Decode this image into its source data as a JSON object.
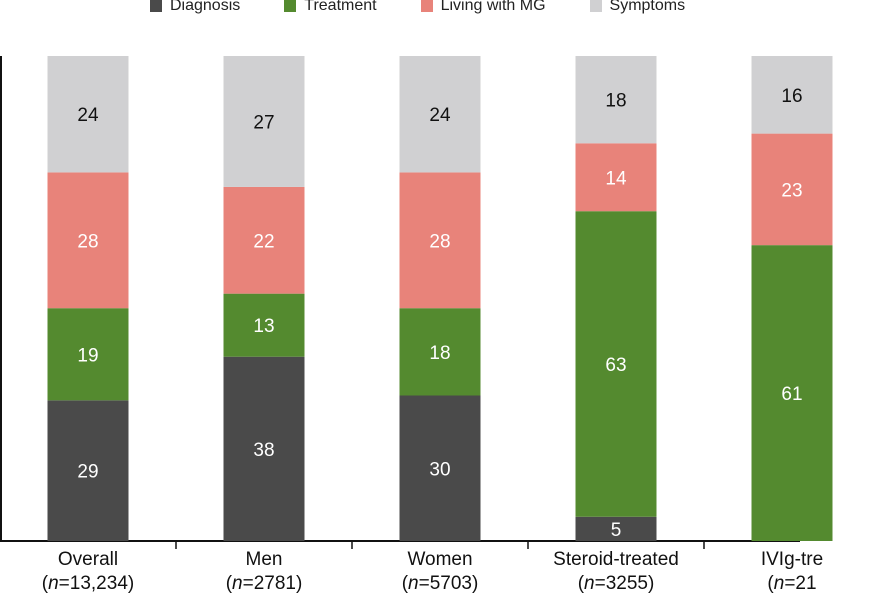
{
  "chart_data": {
    "type": "bar",
    "stacked": true,
    "categories": [
      "Overall",
      "Men",
      "Women",
      "Steroid-treated",
      "IVIg-tre"
    ],
    "category_counts": [
      "13,234",
      "2781",
      "5703",
      "3255",
      "21"
    ],
    "n_prefix": "n",
    "n_equals": "=",
    "series": [
      {
        "name": "Diagnosis",
        "color": "#4a4a4a",
        "values": [
          29,
          38,
          30,
          5,
          0
        ],
        "labels": [
          "29",
          "38",
          "30",
          "5",
          ""
        ]
      },
      {
        "name": "Treatment",
        "color": "#548a2f",
        "values": [
          19,
          13,
          18,
          63,
          61
        ],
        "labels": [
          "19",
          "13",
          "18",
          "63",
          "61"
        ]
      },
      {
        "name": "Living with MG",
        "color": "#e8837a",
        "values": [
          28,
          22,
          28,
          14,
          23
        ],
        "labels": [
          "28",
          "22",
          "28",
          "14",
          "23"
        ]
      },
      {
        "name": "Symptoms",
        "color": "#d0d0d2",
        "values": [
          24,
          27,
          24,
          18,
          16
        ],
        "labels": [
          "24",
          "27",
          "24",
          "18",
          "16"
        ]
      }
    ],
    "ylim": [
      0,
      100
    ],
    "legend_position": "top",
    "grid": false
  }
}
